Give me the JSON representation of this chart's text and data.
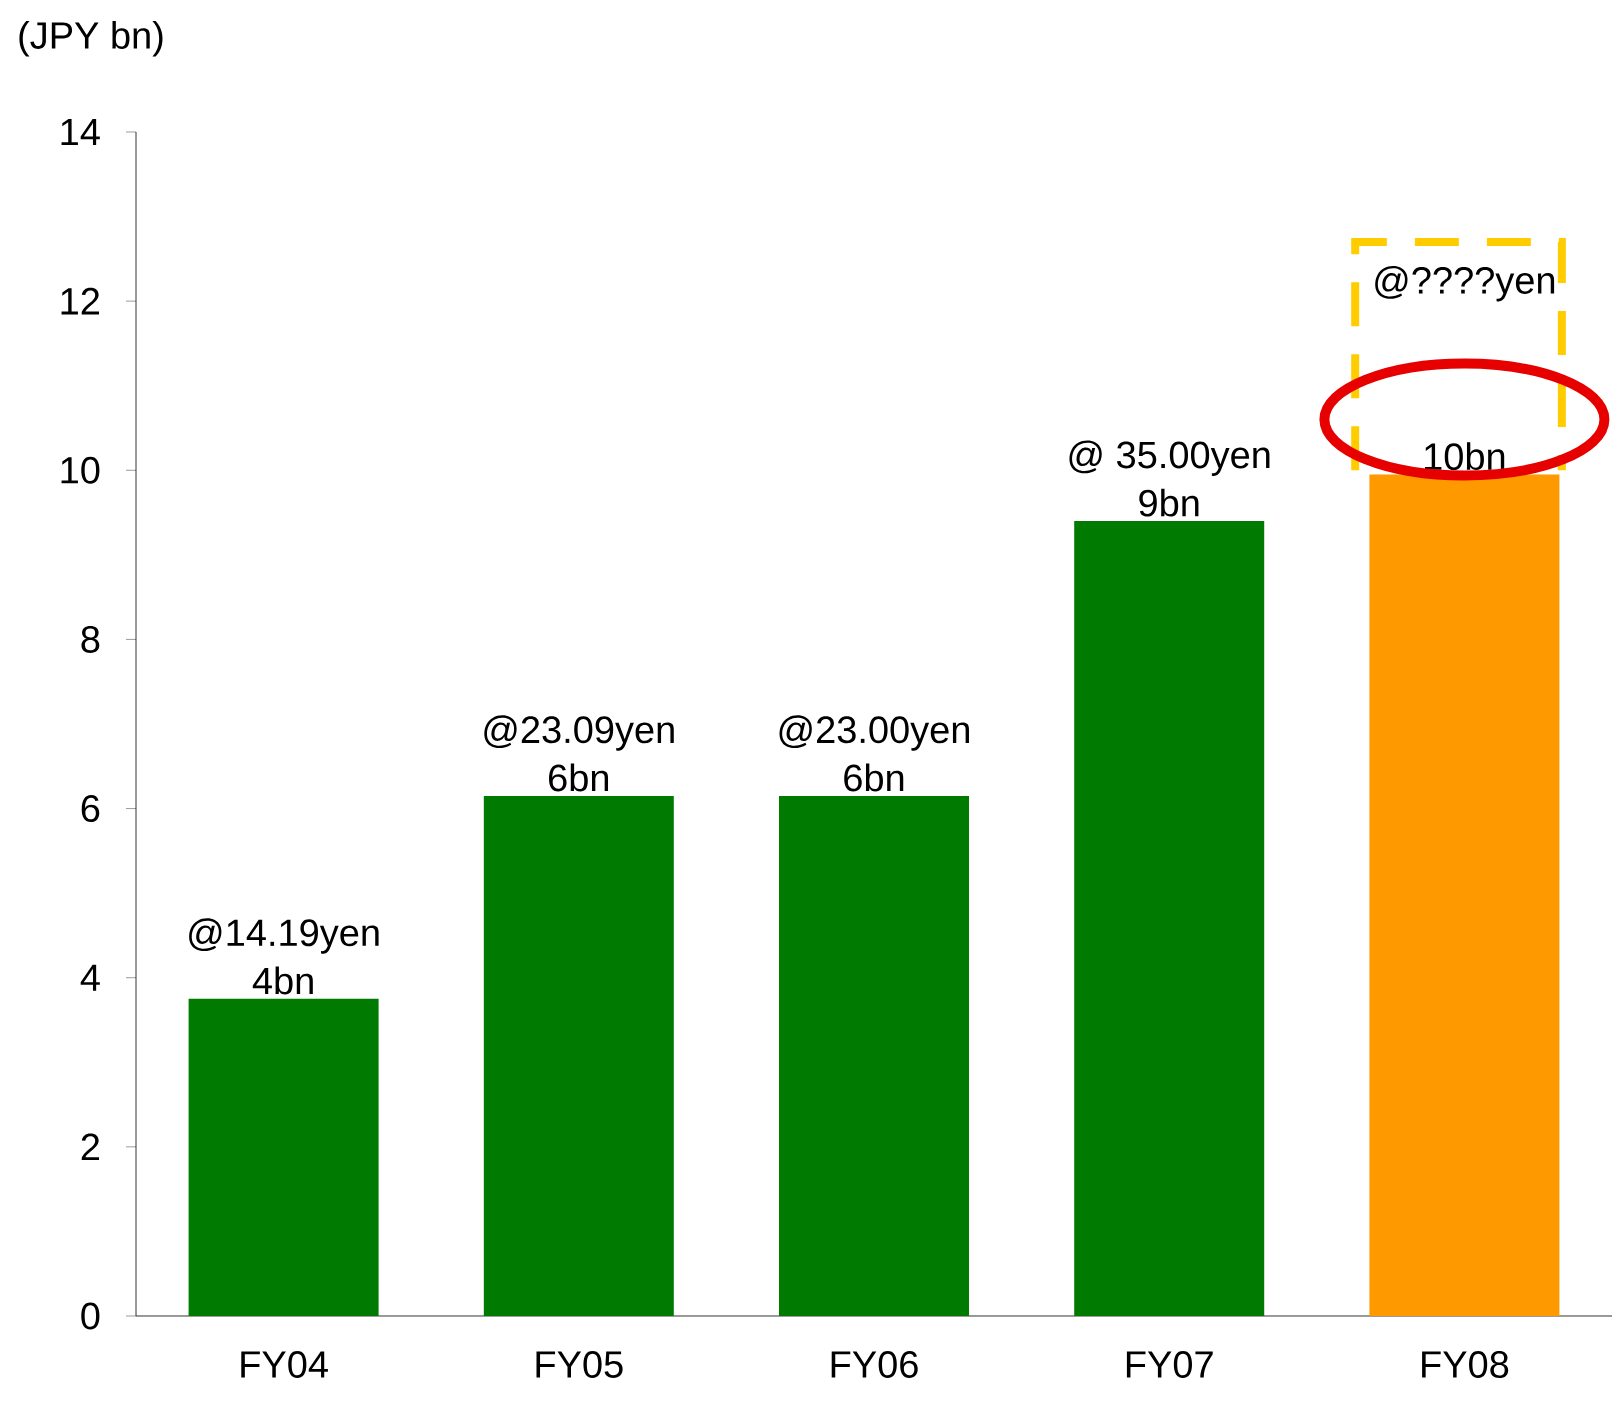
{
  "chart_data": {
    "type": "bar",
    "ylabel": "(JPY bn)",
    "categories": [
      "FY04",
      "FY05",
      "FY06",
      "FY07",
      "FY08"
    ],
    "values": [
      3.75,
      6.15,
      6.15,
      9.4,
      9.95
    ],
    "colors": [
      "#007a00",
      "#007a00",
      "#007a00",
      "#007a00",
      "#ff9900"
    ],
    "value_labels": [
      "4bn",
      "6bn",
      "6bn",
      "9bn",
      "10bn"
    ],
    "annotations": [
      "@14.19yen",
      "@23.09yen",
      "@23.00yen",
      "@ 35.00yen",
      "@????yen"
    ],
    "ylim": [
      0,
      14
    ],
    "yticks": [
      0,
      2,
      4,
      6,
      8,
      10,
      12,
      14
    ],
    "grid": false
  }
}
